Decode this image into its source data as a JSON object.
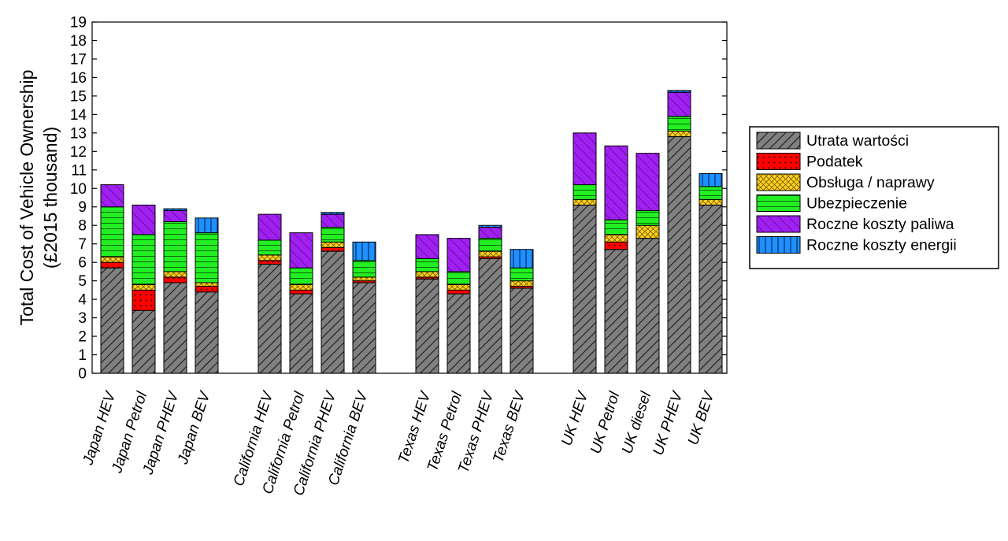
{
  "chart_data": {
    "type": "bar",
    "stacked": true,
    "ylabel": "Total Cost of Vehicle Ownership",
    "ylabel_line2": "(£2015 thousand)",
    "ylim": [
      0,
      19
    ],
    "yticks": [
      "0",
      "1",
      "2",
      "3",
      "4",
      "5",
      "6",
      "7",
      "8",
      "9",
      "10",
      "11",
      "12",
      "13",
      "14",
      "15",
      "16",
      "17",
      "18",
      "19"
    ],
    "grid": false,
    "legend_position": "right",
    "categories": [
      "Japan HEV",
      "Japan Petrol",
      "Japan PHEV",
      "Japan BEV",
      "California HEV",
      "California Petrol",
      "California PHEV",
      "California BEV",
      "Texas HEV",
      "Texas Petrol",
      "Texas PHEV",
      "Texas BEV",
      "UK HEV",
      "UK Petrol",
      "UK diesel",
      "UK PHEV",
      "UK BEV"
    ],
    "groups": [
      [
        "Japan HEV",
        "Japan Petrol",
        "Japan PHEV",
        "Japan BEV"
      ],
      [
        "California HEV",
        "California Petrol",
        "California PHEV",
        "California BEV"
      ],
      [
        "Texas HEV",
        "Texas Petrol",
        "Texas PHEV",
        "Texas BEV"
      ],
      [
        "UK HEV",
        "UK Petrol",
        "UK diesel",
        "UK PHEV",
        "UK BEV"
      ]
    ],
    "series": [
      {
        "name": "Utrata wartości",
        "color": "#808080",
        "pattern": "diagonal-hatch",
        "values": [
          5.7,
          3.4,
          4.9,
          4.4,
          5.9,
          4.3,
          6.6,
          4.9,
          5.1,
          4.3,
          6.2,
          4.6,
          9.1,
          6.7,
          7.3,
          12.8,
          9.1
        ]
      },
      {
        "name": "Podatek",
        "color": "#ff0000",
        "pattern": "dots",
        "values": [
          0.3,
          1.1,
          0.3,
          0.3,
          0.2,
          0.2,
          0.2,
          0.1,
          0.1,
          0.2,
          0.1,
          0.1,
          0.0,
          0.4,
          0.0,
          0.0,
          0.0
        ]
      },
      {
        "name": "Obsługa / naprawy",
        "color": "#ffd21f",
        "pattern": "crosshatch",
        "values": [
          0.3,
          0.3,
          0.3,
          0.2,
          0.3,
          0.3,
          0.3,
          0.2,
          0.3,
          0.3,
          0.3,
          0.3,
          0.3,
          0.4,
          0.7,
          0.3,
          0.3
        ]
      },
      {
        "name": "Ubezpieczenie",
        "color": "#22ee22",
        "pattern": "horizontal-lines",
        "values": [
          2.7,
          2.7,
          2.7,
          2.7,
          0.8,
          0.9,
          0.8,
          0.9,
          0.7,
          0.7,
          0.7,
          0.7,
          0.8,
          0.8,
          0.8,
          0.8,
          0.7
        ]
      },
      {
        "name": "Roczne koszty paliwa",
        "color": "#a020f0",
        "pattern": "diagonal-hatch",
        "values": [
          1.2,
          1.6,
          0.6,
          0.0,
          1.4,
          1.9,
          0.7,
          0.0,
          1.3,
          1.8,
          0.6,
          0.0,
          2.8,
          4.0,
          3.1,
          1.3,
          0.0
        ]
      },
      {
        "name": "Roczne koszty energii",
        "color": "#1e90ff",
        "pattern": "vertical-lines",
        "values": [
          0.0,
          0.0,
          0.1,
          0.8,
          0.0,
          0.0,
          0.1,
          1.0,
          0.0,
          0.0,
          0.1,
          1.0,
          0.0,
          0.0,
          0.0,
          0.1,
          0.7
        ]
      }
    ]
  }
}
